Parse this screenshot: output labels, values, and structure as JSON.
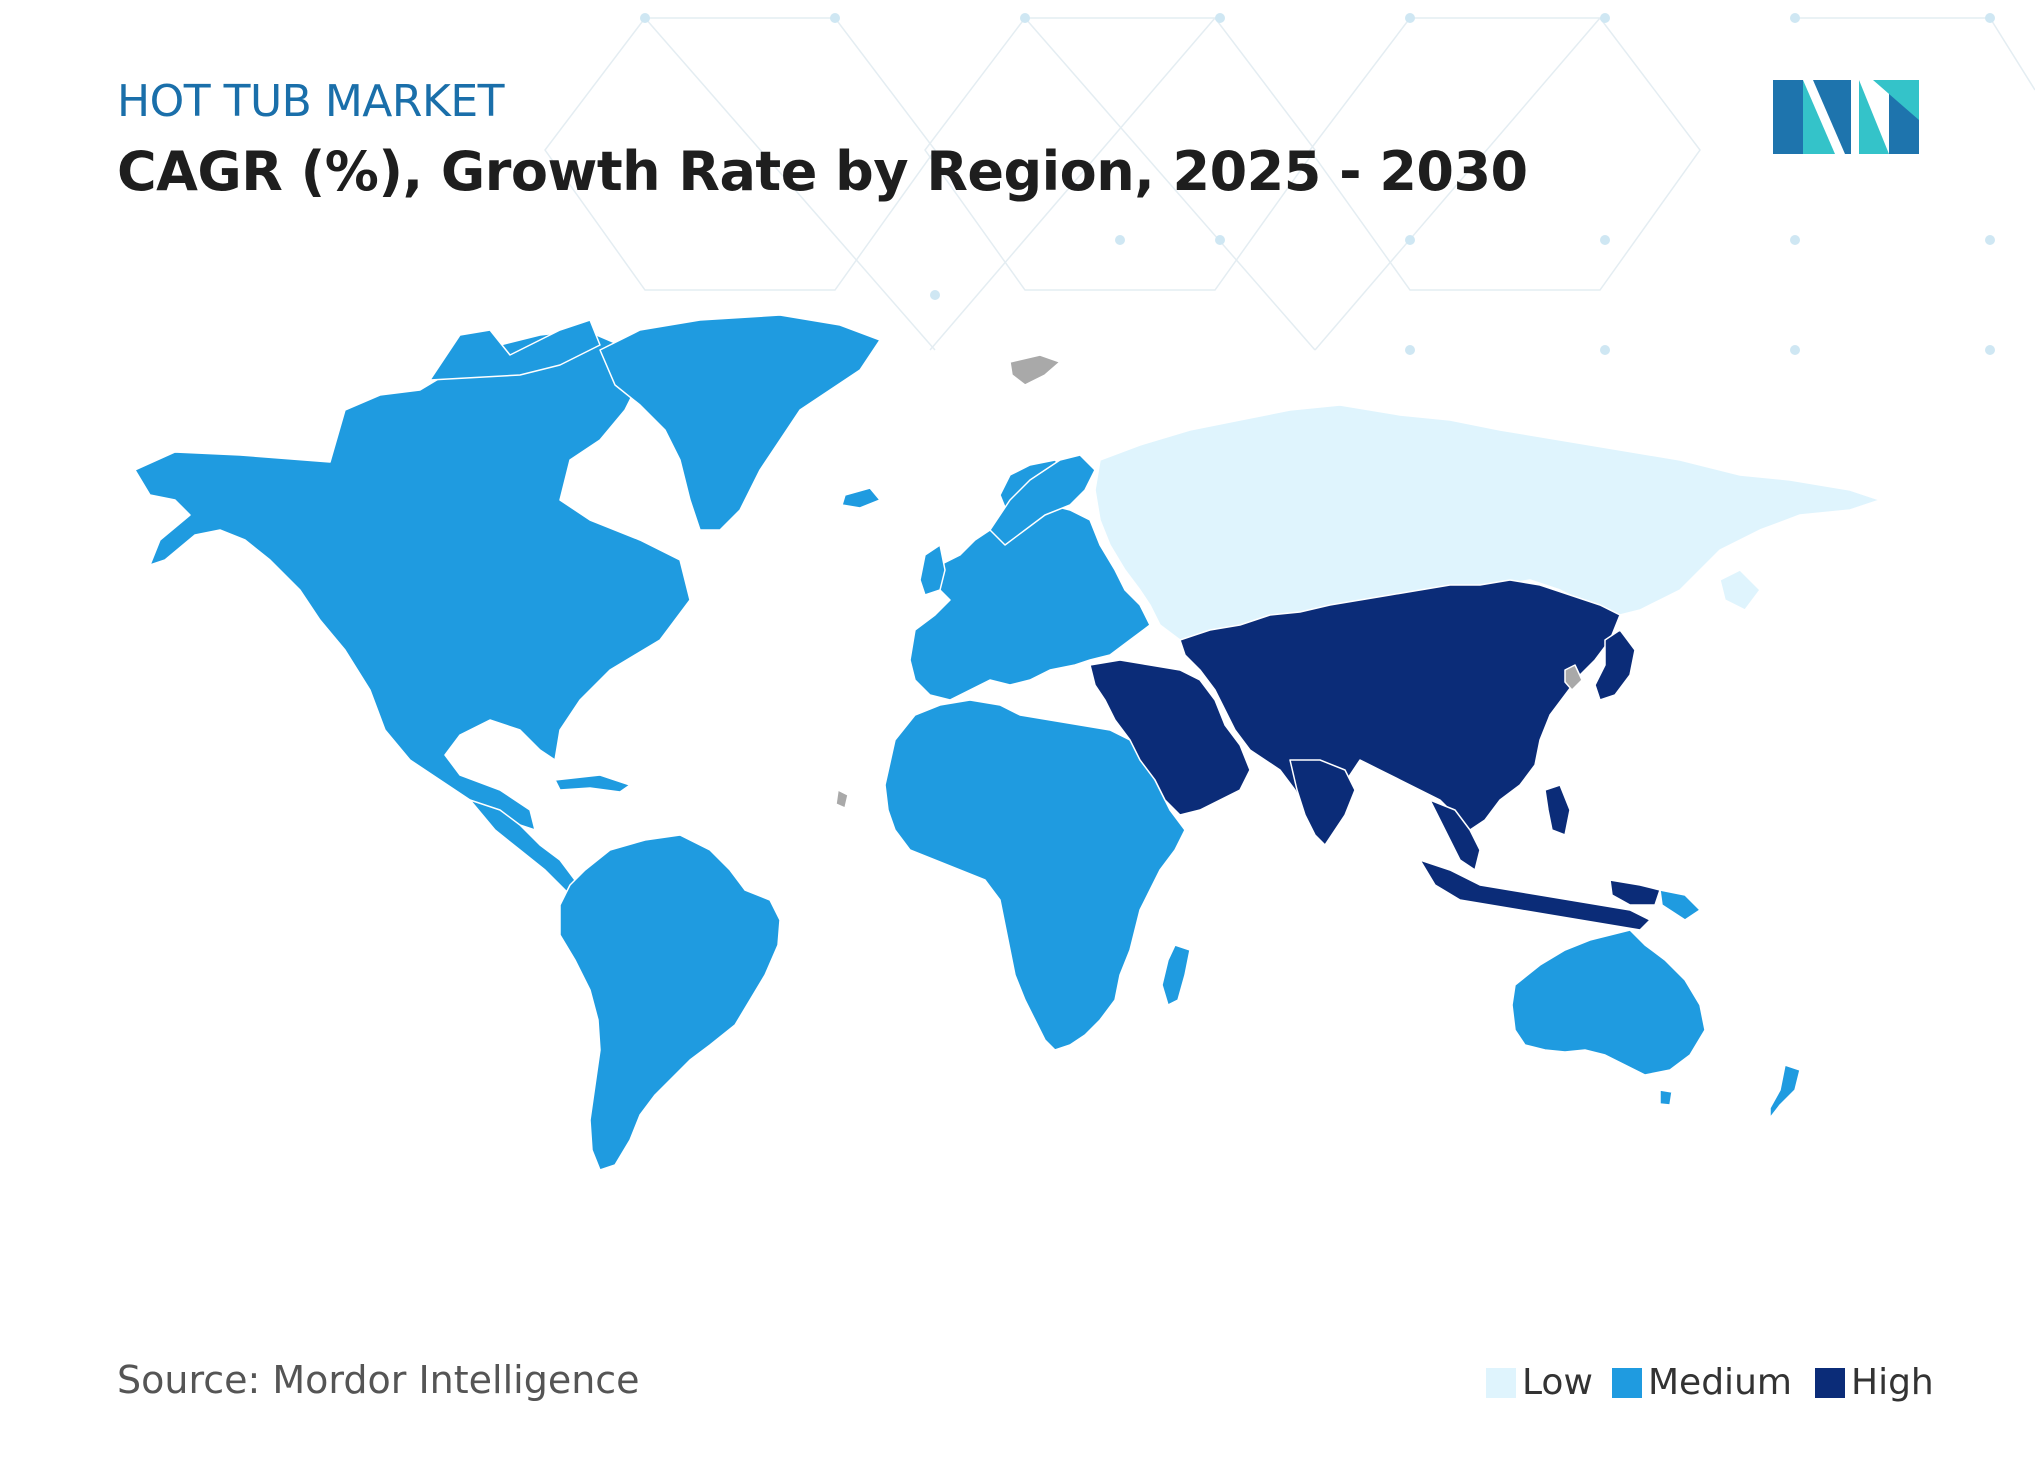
{
  "header": {
    "subtitle": "HOT TUB MARKET",
    "title": "CAGR (%), Growth Rate by Region, 2025 - 2030"
  },
  "footer": {
    "source": "Source: Mordor Intelligence"
  },
  "legend": [
    {
      "label": "Low",
      "color": "#dff4fd"
    },
    {
      "label": "Medium",
      "color": "#1f9be0"
    },
    {
      "label": "High",
      "color": "#0b2c78"
    }
  ],
  "colors": {
    "low": "#dff4fd",
    "medium": "#1f9be0",
    "high": "#0b2c78",
    "no_data": "#a9a9a9",
    "logo_dark": "#1e74ad",
    "logo_light": "#34c3c9"
  },
  "regions": {
    "north_america": "medium",
    "south_america": "medium",
    "europe": "medium",
    "africa": "medium",
    "greenland": "medium",
    "russia": "low",
    "asia_pacific": "high",
    "middle_east": "high",
    "australia_new_zealand": "medium"
  }
}
